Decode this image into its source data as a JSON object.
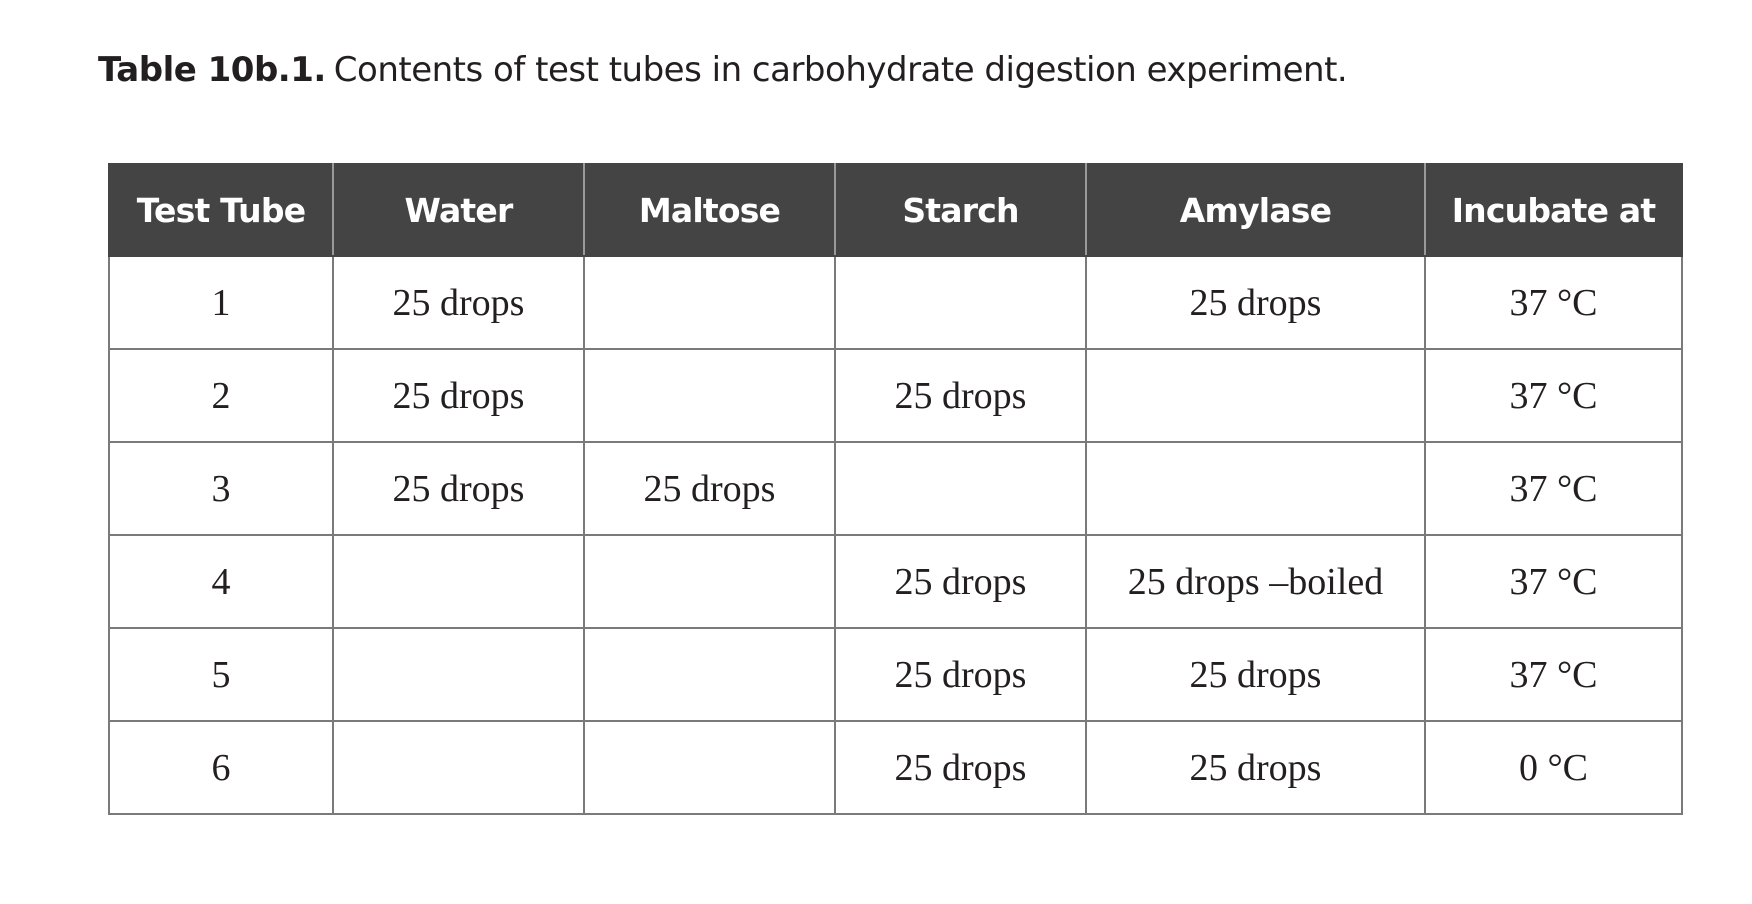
{
  "caption": {
    "label": "Table 10b.1.",
    "text": "Contents of test tubes in carbohydrate digestion experiment."
  },
  "table": {
    "headers": [
      "Test Tube",
      "Water",
      "Maltose",
      "Starch",
      "Amylase",
      "Incubate at"
    ],
    "rows": [
      [
        "1",
        "25 drops",
        "",
        "",
        "25 drops",
        "37 °C"
      ],
      [
        "2",
        "25 drops",
        "",
        "25 drops",
        "",
        "37 °C"
      ],
      [
        "3",
        "25 drops",
        "25 drops",
        "",
        "",
        "37 °C"
      ],
      [
        "4",
        "",
        "",
        "25 drops",
        "25 drops –boiled",
        "37 °C"
      ],
      [
        "5",
        "",
        "",
        "25 drops",
        "25 drops",
        "37 °C"
      ],
      [
        "6",
        "",
        "",
        "25 drops",
        "25 drops",
        "0 °C"
      ]
    ]
  }
}
